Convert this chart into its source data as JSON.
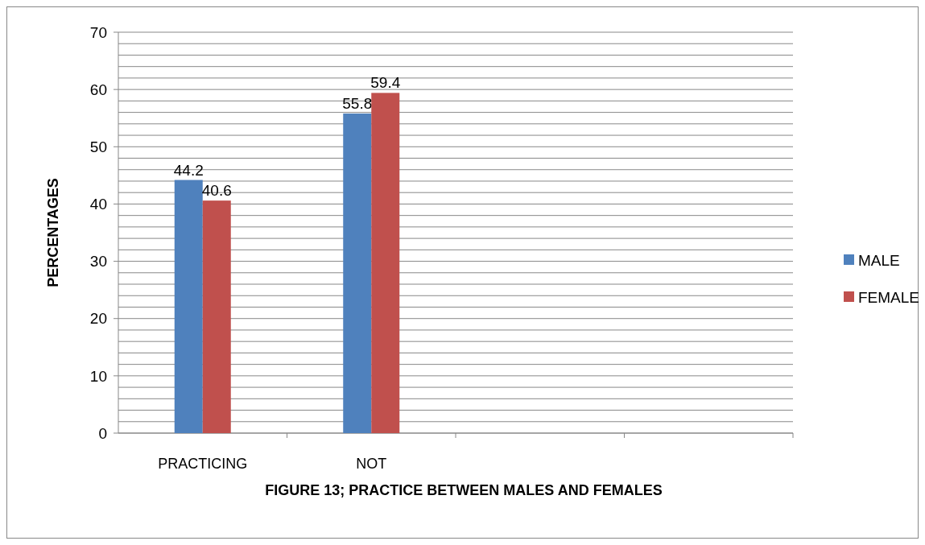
{
  "chart_data": {
    "type": "bar",
    "title": "FIGURE 13; PRACTICE BETWEEN MALES AND FEMALES",
    "ylabel": "PERCENTAGES",
    "categories": [
      "PRACTICING",
      "NOT",
      null,
      null
    ],
    "series": [
      {
        "name": "MALE",
        "color": "#4f81bd",
        "values": [
          44.2,
          55.8,
          null,
          null
        ]
      },
      {
        "name": "FEMALE",
        "color": "#c0504d",
        "values": [
          40.6,
          59.4,
          null,
          null
        ]
      }
    ],
    "ylim": [
      0,
      70
    ],
    "yticks": [
      0,
      {
        "value": 2,
        "label": null
      },
      {
        "value": 4,
        "label": null
      },
      {
        "value": 6,
        "label": null
      },
      {
        "value": 8,
        "label": null
      },
      10,
      {
        "value": 12,
        "label": null
      },
      {
        "value": 14,
        "label": null
      },
      {
        "value": 16,
        "label": null
      },
      {
        "value": 18,
        "label": null
      },
      20,
      {
        "value": 22,
        "label": null
      },
      {
        "value": 24,
        "label": null
      },
      {
        "value": 26,
        "label": null
      },
      {
        "value": 28,
        "label": null
      },
      30,
      {
        "value": 32,
        "label": null
      },
      {
        "value": 34,
        "label": null
      },
      {
        "value": 36,
        "label": null
      },
      {
        "value": 38,
        "label": null
      },
      40,
      {
        "value": 42,
        "label": null
      },
      {
        "value": 44,
        "label": null
      },
      {
        "value": 46,
        "label": null
      },
      {
        "value": 48,
        "label": null
      },
      50,
      {
        "value": 52,
        "label": null
      },
      {
        "value": 54,
        "label": null
      },
      {
        "value": 56,
        "label": null
      },
      {
        "value": 58,
        "label": null
      },
      60,
      {
        "value": 62,
        "label": null
      },
      {
        "value": 64,
        "label": null
      },
      {
        "value": 66,
        "label": null
      },
      {
        "value": 68,
        "label": null
      },
      70
    ],
    "grid": "y",
    "legend": "right",
    "data_labels": true
  }
}
